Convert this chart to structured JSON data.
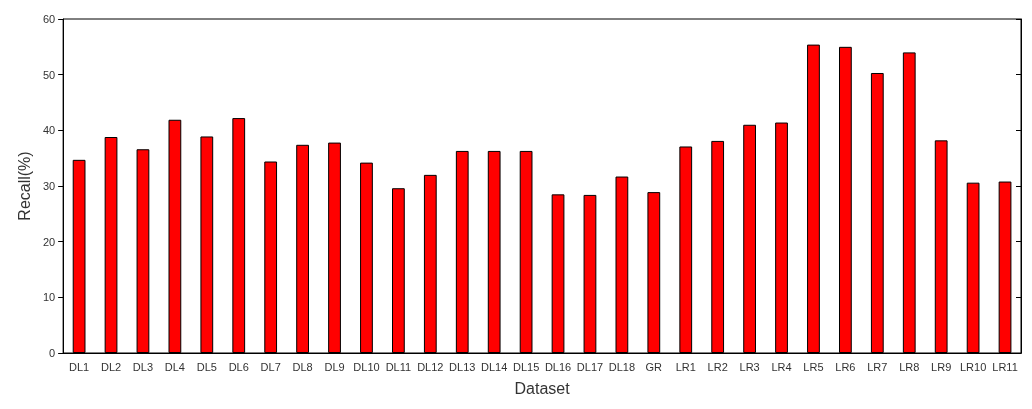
{
  "chart_data": {
    "type": "bar",
    "xlabel": "Dataset",
    "ylabel": "Recall(%)",
    "categories": [
      "DL1",
      "DL2",
      "DL3",
      "DL4",
      "DL5",
      "DL6",
      "DL7",
      "DL8",
      "DL9",
      "DL10",
      "DL11",
      "DL12",
      "DL13",
      "DL14",
      "DL15",
      "DL16",
      "DL17",
      "DL18",
      "GR",
      "LR1",
      "LR2",
      "LR3",
      "LR4",
      "LR5",
      "LR6",
      "LR7",
      "LR8",
      "LR9",
      "LR10",
      "LR11"
    ],
    "values": [
      34.7,
      38.8,
      36.6,
      41.9,
      38.9,
      42.2,
      34.4,
      37.4,
      37.8,
      34.2,
      29.6,
      32.0,
      36.3,
      36.3,
      36.3,
      28.5,
      28.4,
      31.7,
      28.9,
      37.1,
      38.1,
      41.0,
      41.4,
      55.4,
      55.0,
      50.3,
      54.0,
      38.2,
      30.6,
      30.8
    ],
    "color": "#ff0000",
    "ylim": [
      0,
      60
    ],
    "yticks": [
      0,
      10,
      20,
      30,
      40,
      50,
      60
    ],
    "grid": false
  }
}
